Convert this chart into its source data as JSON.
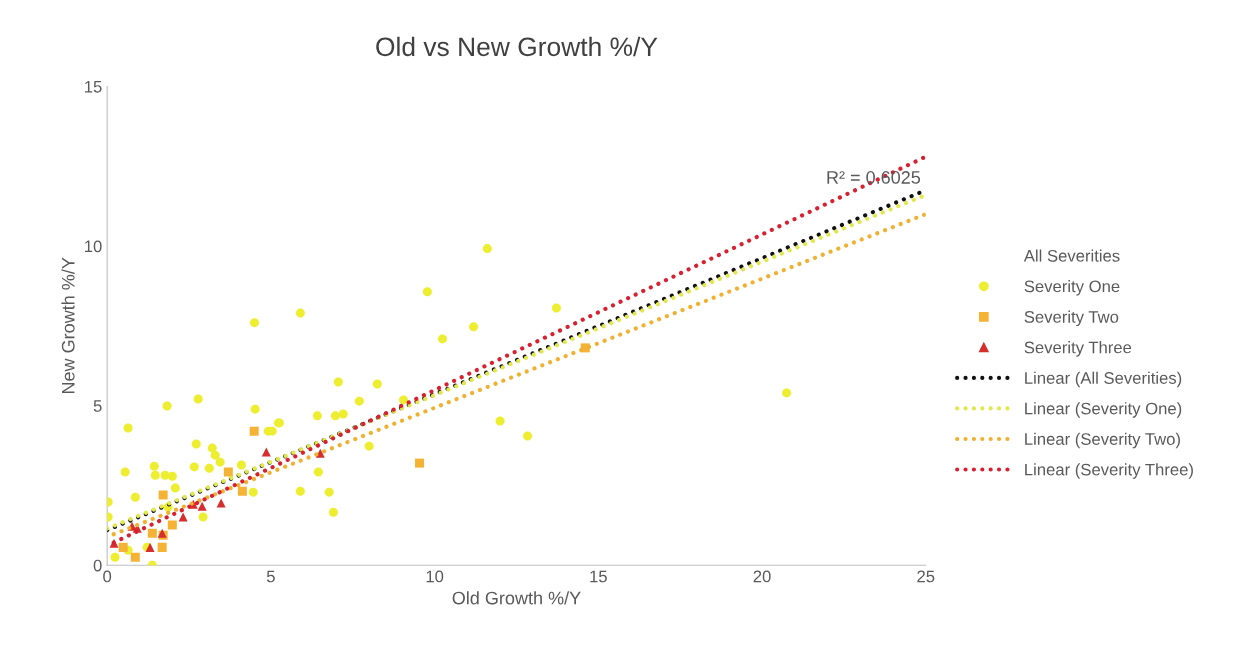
{
  "chart_data": {
    "type": "scatter",
    "title": "Old vs New Growth %/Y",
    "xlabel": "Old Growth %/Y",
    "ylabel": "New Growth %/Y",
    "xlim": [
      0,
      25
    ],
    "xticks": [
      0,
      5,
      10,
      15,
      20,
      25
    ],
    "ylim": [
      0,
      15
    ],
    "yticks": [
      0,
      5,
      10,
      15
    ],
    "grid": false,
    "legend": "right",
    "annotations": [
      {
        "text": "R² = 0.6025",
        "x": 23.4,
        "y": 12.1
      }
    ],
    "series": [
      {
        "name": "All Severities",
        "marker": "none"
      },
      {
        "name": "Severity One",
        "marker": "circle",
        "color": "#eeee30",
        "x": [
          11.61,
          9.78,
          13.72,
          5.9,
          4.5,
          10.24,
          11.19,
          0.64,
          1.83,
          2.78,
          4.52,
          4.92,
          5.04,
          7.06,
          8.25,
          7.7,
          6.97,
          7.21,
          6.42,
          5.26,
          9.05,
          5.9,
          6.78,
          6.91,
          6.45,
          4.46,
          8.0,
          20.75,
          12.0,
          12.84,
          0.55,
          1.44,
          1.47,
          1.77,
          1.99,
          2.72,
          2.66,
          3.21,
          3.3,
          3.45,
          3.12,
          2.08,
          0.86,
          0.03,
          5.23,
          4.1,
          2.93,
          0.24,
          1.38,
          0.64,
          0.03,
          1.22,
          1.86
        ],
        "values": [
          9.92,
          8.57,
          8.06,
          7.9,
          7.6,
          7.09,
          7.47,
          4.3,
          4.99,
          5.21,
          4.89,
          4.2,
          4.2,
          5.74,
          5.68,
          5.14,
          4.68,
          4.74,
          4.68,
          4.46,
          5.18,
          2.32,
          2.29,
          1.66,
          2.92,
          2.29,
          3.73,
          5.4,
          4.52,
          4.05,
          2.92,
          3.1,
          2.82,
          2.82,
          2.79,
          3.8,
          3.08,
          3.67,
          3.45,
          3.23,
          3.04,
          2.42,
          2.13,
          1.98,
          4.46,
          3.14,
          1.51,
          0.25,
          0.0,
          0.47,
          1.51,
          0.56,
          1.82
        ]
      },
      {
        "name": "Severity Two",
        "marker": "square",
        "color": "#f5b335",
        "x": [
          4.49,
          14.6,
          9.54,
          1.71,
          4.13,
          1.99,
          0.86,
          0.49,
          1.68,
          1.38,
          3.7,
          1.71
        ],
        "values": [
          4.2,
          6.81,
          3.2,
          2.2,
          2.32,
          1.26,
          0.25,
          0.56,
          0.56,
          1.0,
          2.92,
          0.94
        ]
      },
      {
        "name": "Severity Three",
        "marker": "triangle",
        "color": "#d62d2d",
        "x": [
          0.21,
          1.31,
          1.68,
          0.92,
          2.32,
          2.63,
          2.9,
          3.48,
          4.86,
          6.51,
          0.76
        ],
        "values": [
          0.69,
          0.56,
          1.0,
          1.16,
          1.51,
          1.91,
          1.85,
          1.95,
          3.55,
          3.51,
          1.22
        ]
      },
      {
        "name": "Linear (All Severities)",
        "type": "line",
        "line_style": "dotted",
        "color": "#111111",
        "x": [
          0,
          25
        ],
        "values": [
          1.1,
          11.75
        ]
      },
      {
        "name": "Linear (Severity One)",
        "type": "line",
        "line_style": "dotted",
        "color": "#e2e84a",
        "x": [
          0,
          25
        ],
        "values": [
          1.15,
          11.6
        ]
      },
      {
        "name": "Linear (Severity Two)",
        "type": "line",
        "line_style": "dotted",
        "color": "#f0b030",
        "x": [
          0.2,
          25
        ],
        "values": [
          0.97,
          11.0
        ]
      },
      {
        "name": "Linear (Severity Three)",
        "type": "line",
        "line_style": "dotted",
        "color": "#d82030",
        "x": [
          0.2,
          25
        ],
        "values": [
          0.71,
          12.8
        ]
      }
    ]
  }
}
